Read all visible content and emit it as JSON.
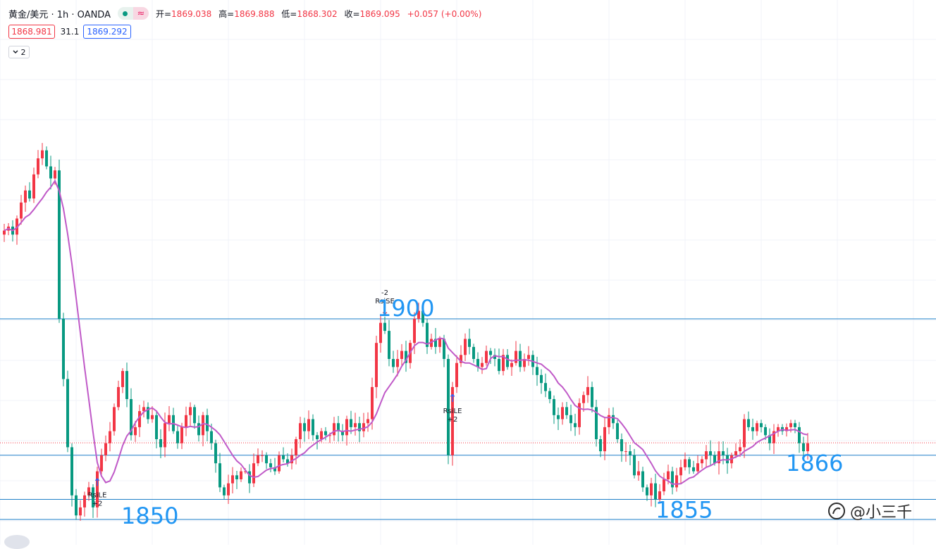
{
  "header": {
    "symbol": "黄金/美元 · 1h · OANDA",
    "ohlc": [
      {
        "label": "开=",
        "value": "1869.038"
      },
      {
        "label": "高=",
        "value": "1869.888"
      },
      {
        "label": "低=",
        "value": "1868.302"
      },
      {
        "label": "收=",
        "value": "1869.095"
      }
    ],
    "change": "+0.057 (+0.00%)",
    "indicator_icon": "≈"
  },
  "price_boxes": {
    "bid": "1868.981",
    "spread": "31.1",
    "ask": "1869.292"
  },
  "collapse_button": {
    "icon": "chevron-down-icon",
    "count": "2"
  },
  "watermark": {
    "text": "@小三千"
  },
  "colors": {
    "up": "#f23645",
    "down": "#089981",
    "ma": "#c05ac8",
    "level": "#1e7fc8",
    "level_text": "#2196f3",
    "grid": "#f0f3fa"
  },
  "chart_data": {
    "type": "candlestick",
    "levels": [
      {
        "price": 1900,
        "label": "1900"
      },
      {
        "price": 1866,
        "label": "1866"
      },
      {
        "price": 1855,
        "label": "1855"
      },
      {
        "price": 1850,
        "label": "1850"
      }
    ],
    "current_price": 1869.1,
    "signals": [
      {
        "type": "long",
        "bar": 22,
        "label": "RsiLE",
        "qty": "+2"
      },
      {
        "type": "short",
        "bar": 90,
        "label": "RsiSE",
        "qty": "-2"
      },
      {
        "type": "long",
        "bar": 106,
        "label": "RsiLE",
        "qty": "+2"
      }
    ],
    "close_series": [
      1922,
      1923,
      1921,
      1925,
      1929,
      1932,
      1930,
      1936,
      1940,
      1942,
      1938,
      1935,
      1937,
      1900,
      1885,
      1868,
      1856,
      1851,
      1853,
      1856,
      1858,
      1853,
      1862,
      1866,
      1869,
      1872,
      1878,
      1883,
      1887,
      1880,
      1871,
      1873,
      1877,
      1878,
      1875,
      1876,
      1870,
      1868,
      1874,
      1876,
      1872,
      1869,
      1873,
      1876,
      1878,
      1874,
      1871,
      1876,
      1872,
      1869,
      1864,
      1858,
      1856,
      1859,
      1861,
      1860,
      1862,
      1862,
      1859,
      1864,
      1866,
      1866,
      1864,
      1863,
      1862,
      1866,
      1865,
      1864,
      1866,
      1870,
      1874,
      1872,
      1875,
      1871,
      1870,
      1872,
      1871,
      1871,
      1874,
      1872,
      1871,
      1875,
      1873,
      1874,
      1872,
      1874,
      1875,
      1883,
      1894,
      1899,
      1897,
      1890,
      1888,
      1890,
      1892,
      1889,
      1894,
      1900,
      1902,
      1899,
      1893,
      1895,
      1893,
      1895,
      1890,
      1866,
      1883,
      1889,
      1891,
      1895,
      1893,
      1890,
      1888,
      1889,
      1892,
      1891,
      1890,
      1887,
      1891,
      1888,
      1889,
      1892,
      1888,
      1890,
      1891,
      1888,
      1886,
      1884,
      1882,
      1880,
      1876,
      1875,
      1878,
      1876,
      1874,
      1873,
      1879,
      1881,
      1883,
      1878,
      1870,
      1867,
      1873,
      1876,
      1874,
      1870,
      1867,
      1867,
      1866,
      1861,
      1862,
      1858,
      1856,
      1859,
      1855,
      1857,
      1860,
      1862,
      1858,
      1861,
      1863,
      1865,
      1863,
      1862,
      1864,
      1865,
      1867,
      1866,
      1864,
      1867,
      1866,
      1864,
      1866,
      1867,
      1868,
      1875,
      1873,
      1872,
      1874,
      1873,
      1871,
      1869,
      1872,
      1873,
      1872,
      1873,
      1874,
      1873,
      1869,
      1867,
      1869
    ]
  }
}
